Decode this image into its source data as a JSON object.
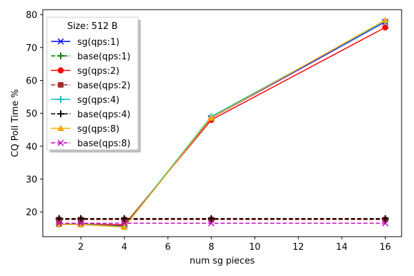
{
  "chart_data": {
    "type": "line",
    "xlabel": "num sg pieces",
    "ylabel": "CQ Poll Time %",
    "xlim": [
      0.25,
      16.75
    ],
    "ylim": [
      12.5,
      81.5
    ],
    "xticks": [
      2,
      4,
      6,
      8,
      10,
      12,
      14,
      16
    ],
    "yticks": [
      20,
      30,
      40,
      50,
      60,
      70,
      80
    ],
    "grid": false,
    "legend": {
      "title": "Size: 512 B",
      "placement": "top-left"
    },
    "x": [
      1,
      2,
      4,
      8,
      16
    ],
    "series": [
      {
        "name": "sg(qps:1)",
        "values": [
          16.3,
          16.3,
          15.8,
          48.6,
          77.8
        ],
        "color": "#0000ff",
        "marker": "x",
        "dash": "solid"
      },
      {
        "name": "base(qps:1)",
        "values": [
          17.7,
          17.7,
          17.7,
          17.7,
          17.7
        ],
        "color": "#008000",
        "marker": "plus",
        "dash": "dashed"
      },
      {
        "name": "sg(qps:2)",
        "values": [
          16.3,
          16.3,
          16.1,
          48.0,
          76.1
        ],
        "color": "#ff0000",
        "marker": "circle",
        "dash": "solid"
      },
      {
        "name": "base(qps:2)",
        "values": [
          17.7,
          17.7,
          17.7,
          17.7,
          17.7
        ],
        "color": "#a52a2a",
        "marker": "square",
        "dash": "dashed"
      },
      {
        "name": "sg(qps:4)",
        "values": [
          16.3,
          16.3,
          15.6,
          49.0,
          78.0
        ],
        "color": "#00bfbf",
        "marker": "plus",
        "dash": "solid"
      },
      {
        "name": "base(qps:4)",
        "values": [
          18.0,
          18.0,
          18.0,
          18.0,
          18.0
        ],
        "color": "#000000",
        "marker": "plus",
        "dash": "dashed"
      },
      {
        "name": "sg(qps:8)",
        "values": [
          16.3,
          16.2,
          15.4,
          48.6,
          78.3
        ],
        "color": "#ffa500",
        "marker": "triangle",
        "dash": "solid"
      },
      {
        "name": "base(qps:8)",
        "values": [
          16.6,
          16.6,
          16.6,
          16.6,
          16.6
        ],
        "color": "#bf00bf",
        "marker": "x",
        "dash": "dashed"
      }
    ]
  }
}
